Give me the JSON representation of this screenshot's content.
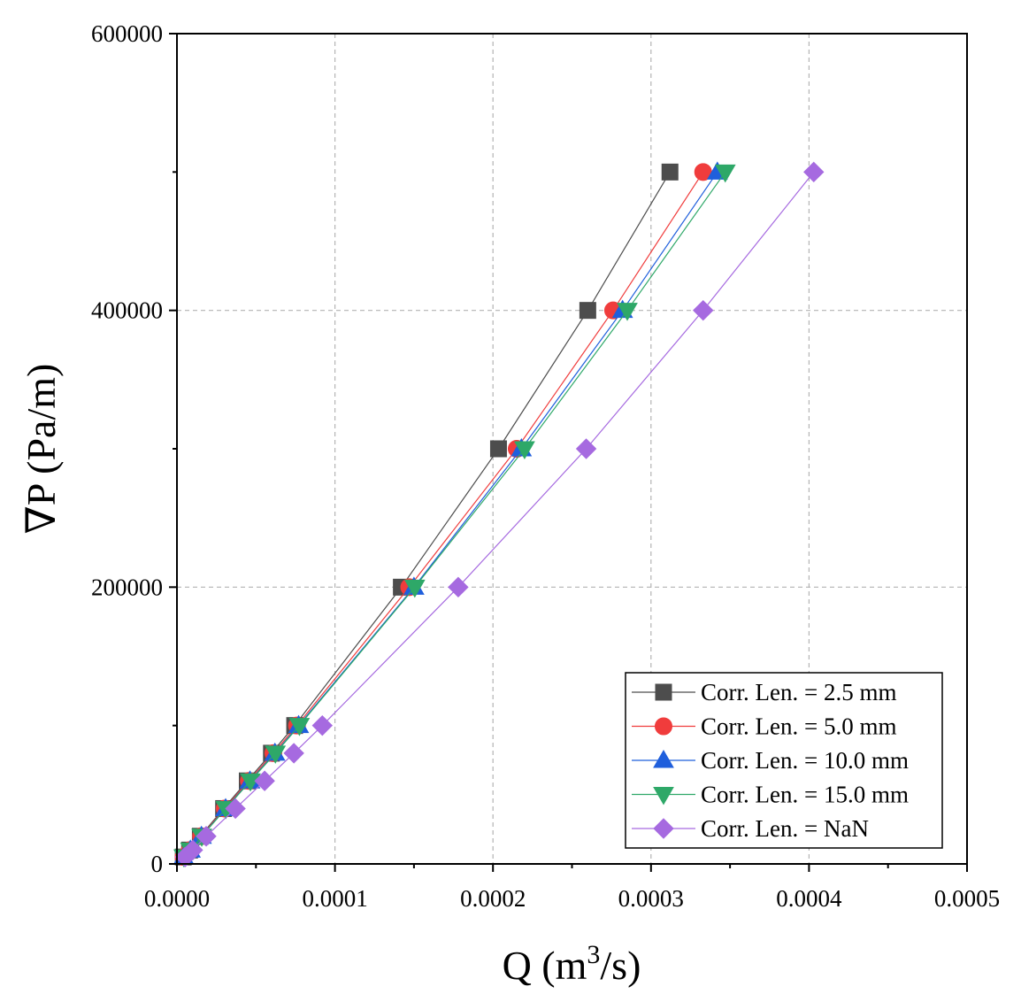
{
  "chart_data": {
    "type": "scatter",
    "xlabel_base": "Q (m",
    "xlabel_sup": "3",
    "xlabel_tail": "/s)",
    "ylabel": "∇P (Pa/m)",
    "xlim": [
      0,
      0.0005
    ],
    "ylim": [
      0,
      600000
    ],
    "xticks": [
      0,
      0.0001,
      0.0002,
      0.0003,
      0.0004,
      0.0005
    ],
    "xtick_labels": [
      "0.0000",
      "0.0001",
      "0.0002",
      "0.0003",
      "0.0004",
      "0.0005"
    ],
    "yticks": [
      0,
      200000,
      400000,
      600000
    ],
    "ytick_labels": [
      "0",
      "200000",
      "400000",
      "600000"
    ],
    "grid": true,
    "legend_position": "bottom-right",
    "series": [
      {
        "name": "Corr. Len. = 2.5 mm",
        "marker": "square",
        "color": "#4d4d4d",
        "x": [
          4e-06,
          8e-06,
          1.48e-05,
          2.95e-05,
          4.45e-05,
          5.98e-05,
          7.45e-05,
          0.000142,
          0.0002035,
          0.00026,
          0.000312
        ],
        "y": [
          5000,
          10000,
          20000,
          40000,
          60000,
          80000,
          100000,
          200000,
          300000,
          400000,
          500000
        ]
      },
      {
        "name": "Corr. Len. = 5.0 mm",
        "marker": "circle",
        "color": "#f03c3c",
        "x": [
          4.2e-06,
          8.3e-06,
          1.52e-05,
          3.02e-05,
          4.55e-05,
          6.1e-05,
          7.6e-05,
          0.000147,
          0.000215,
          0.000276,
          0.000333
        ],
        "y": [
          5000,
          10000,
          20000,
          40000,
          60000,
          80000,
          100000,
          200000,
          300000,
          400000,
          500000
        ]
      },
      {
        "name": "Corr. Len. = 10.0 mm",
        "marker": "triangle-up",
        "color": "#1f5fdc",
        "x": [
          4.3e-06,
          8.5e-06,
          1.55e-05,
          3.08e-05,
          4.62e-05,
          6.2e-05,
          7.7e-05,
          0.00015,
          0.000218,
          0.000282,
          0.000342
        ],
        "y": [
          5000,
          10000,
          20000,
          40000,
          60000,
          80000,
          100000,
          200000,
          300000,
          400000,
          500000
        ]
      },
      {
        "name": "Corr. Len. = 15.0 mm",
        "marker": "triangle-down",
        "color": "#2ea868",
        "x": [
          4.4e-06,
          8.6e-06,
          1.57e-05,
          3.1e-05,
          4.65e-05,
          6.23e-05,
          7.75e-05,
          0.0001505,
          0.00022,
          0.000285,
          0.000347
        ],
        "y": [
          5000,
          10000,
          20000,
          40000,
          60000,
          80000,
          100000,
          200000,
          300000,
          400000,
          500000
        ]
      },
      {
        "name": "Corr. Len. = NaN",
        "marker": "diamond",
        "color": "#a66ae0",
        "x": [
          5.2e-06,
          1e-05,
          1.85e-05,
          3.7e-05,
          5.55e-05,
          7.4e-05,
          9.2e-05,
          0.000178,
          0.000259,
          0.000333,
          0.000403
        ],
        "y": [
          5000,
          10000,
          20000,
          40000,
          60000,
          80000,
          100000,
          200000,
          300000,
          400000,
          500000
        ]
      }
    ]
  }
}
